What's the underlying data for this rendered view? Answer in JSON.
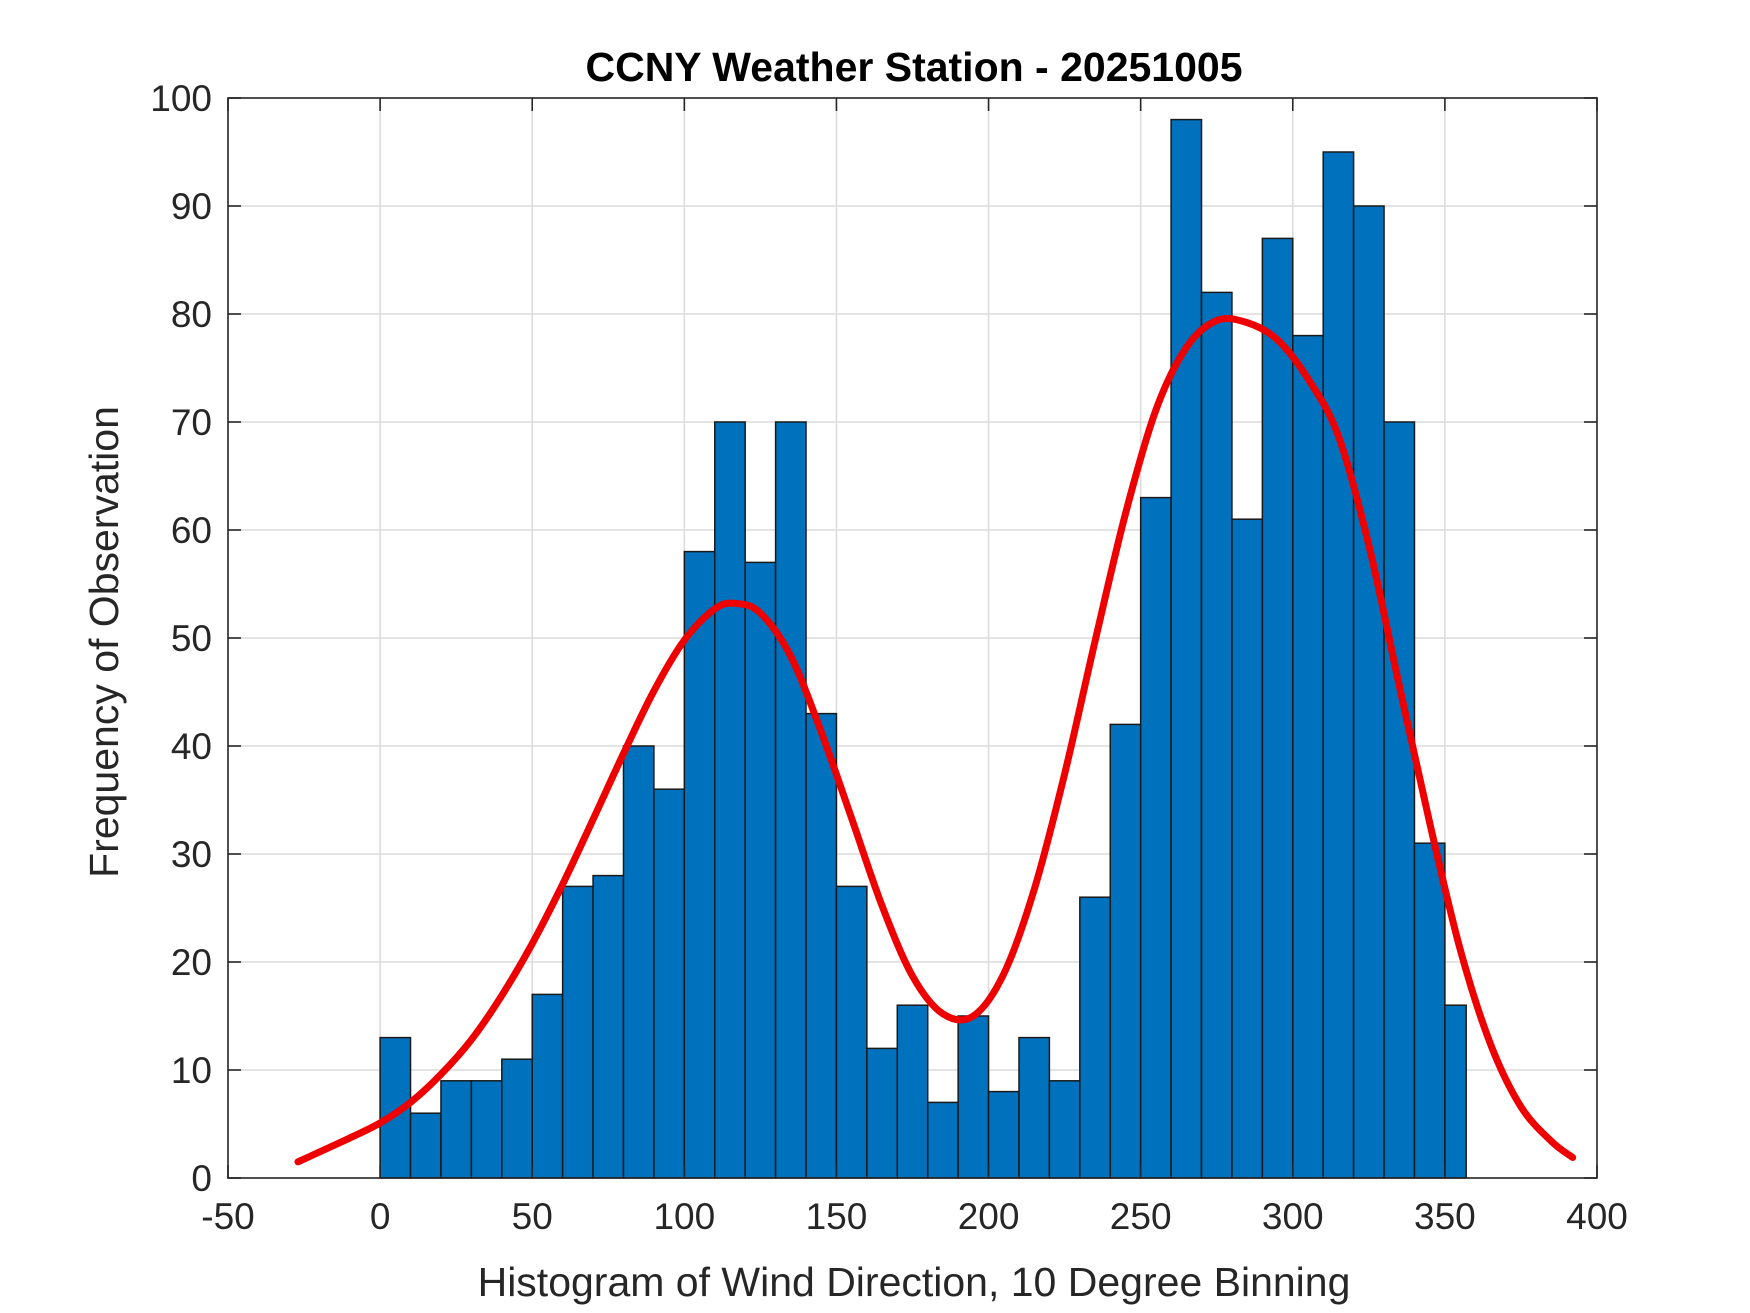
{
  "chart_data": {
    "type": "bar",
    "title": "CCNY Weather Station - 20251005",
    "xlabel": "Histogram of Wind Direction, 10 Degree Binning",
    "ylabel": "Frequency of Observation",
    "xlim": [
      -50,
      400
    ],
    "ylim": [
      0,
      100
    ],
    "xticks": [
      -50,
      0,
      50,
      100,
      150,
      200,
      250,
      300,
      350,
      400
    ],
    "yticks": [
      0,
      10,
      20,
      30,
      40,
      50,
      60,
      70,
      80,
      90,
      100
    ],
    "grid": true,
    "bin_width": 10,
    "bin_starts": [
      0,
      10,
      20,
      30,
      40,
      50,
      60,
      70,
      80,
      90,
      100,
      110,
      120,
      130,
      140,
      150,
      160,
      170,
      180,
      190,
      200,
      210,
      220,
      230,
      240,
      250,
      260,
      270,
      280,
      290,
      300,
      310,
      320,
      330,
      340,
      350
    ],
    "bin_end": 357,
    "values": [
      13,
      6,
      9,
      9,
      11,
      17,
      27,
      28,
      40,
      36,
      58,
      70,
      57,
      70,
      43,
      27,
      12,
      16,
      7,
      15,
      8,
      13,
      9,
      26,
      42,
      63,
      98,
      82,
      61,
      87,
      78,
      95,
      90,
      70,
      31,
      16
    ],
    "fit_curve": {
      "type": "line",
      "x": [
        -27,
        -10,
        0,
        10,
        20,
        30,
        40,
        50,
        60,
        70,
        80,
        90,
        100,
        110,
        117,
        125,
        135,
        145,
        155,
        165,
        175,
        185,
        195,
        205,
        215,
        225,
        235,
        245,
        255,
        265,
        275,
        285,
        295,
        305,
        315,
        325,
        335,
        345,
        355,
        365,
        375,
        385,
        392
      ],
      "values": [
        1.5,
        3.7,
        5.1,
        7.0,
        9.6,
        12.8,
        16.9,
        21.7,
        27.2,
        33.2,
        39.3,
        45.1,
        49.8,
        52.7,
        53.2,
        52.3,
        48.3,
        41.3,
        33.3,
        25.2,
        18.7,
        15.2,
        15.0,
        18.9,
        26.7,
        37.4,
        49.7,
        61.5,
        71.1,
        76.9,
        79.4,
        79.2,
        77.6,
        74.0,
        68.7,
        58.6,
        45.6,
        32.9,
        21.2,
        12.4,
        6.6,
        3.4,
        1.9
      ]
    },
    "colors": {
      "bar_fill": "#0072bd",
      "bar_edge": "#1a1a1a",
      "curve": "#ee0000"
    }
  }
}
